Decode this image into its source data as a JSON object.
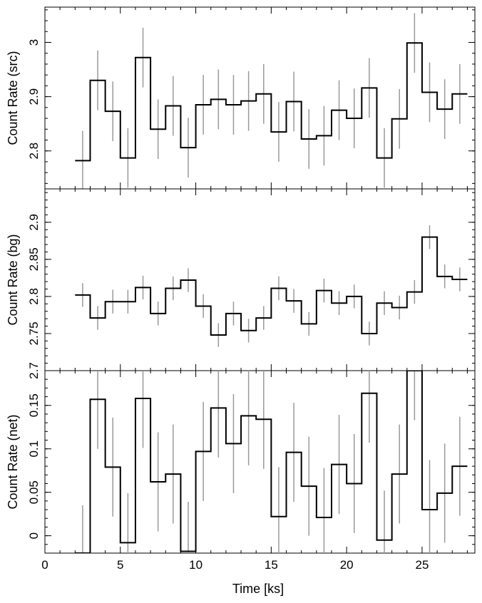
{
  "chart_data": {
    "type": "line",
    "style": "step-histogram-with-error-bars",
    "xlabel": "Time [ks]",
    "xlim": [
      0,
      28.5
    ],
    "xticks": [
      0,
      5,
      10,
      15,
      20,
      25
    ],
    "bin_width_ks": 1,
    "x": [
      2.5,
      3.5,
      4.5,
      5.5,
      6.5,
      7.5,
      8.5,
      9.5,
      10.5,
      11.5,
      12.5,
      13.5,
      14.5,
      15.5,
      16.5,
      17.5,
      18.5,
      19.5,
      20.5,
      21.5,
      22.5,
      23.5,
      24.5,
      25.5,
      26.5,
      27.5
    ],
    "panels": [
      {
        "ylabel": "Count Rate (src)",
        "ylim": [
          2.73,
          3.065
        ],
        "yticks": [
          2.8,
          2.9,
          3.0
        ],
        "ytick_labels": [
          "2.8",
          "2.9",
          "3"
        ],
        "values": [
          2.782,
          2.93,
          2.873,
          2.787,
          2.972,
          2.84,
          2.883,
          2.806,
          2.885,
          2.895,
          2.885,
          2.892,
          2.905,
          2.835,
          2.891,
          2.822,
          2.828,
          2.875,
          2.86,
          2.916,
          2.787,
          2.859,
          2.999,
          2.908,
          2.877,
          2.905
        ],
        "errors": [
          0.055,
          0.055,
          0.055,
          0.055,
          0.055,
          0.055,
          0.055,
          0.055,
          0.055,
          0.055,
          0.055,
          0.055,
          0.055,
          0.055,
          0.055,
          0.055,
          0.055,
          0.055,
          0.055,
          0.055,
          0.055,
          0.055,
          0.055,
          0.055,
          0.055,
          0.055
        ]
      },
      {
        "ylabel": "Count Rate (bg)",
        "ylim": [
          2.7,
          2.945
        ],
        "yticks": [
          2.7,
          2.75,
          2.8,
          2.85,
          2.9
        ],
        "ytick_labels": [
          "2.7",
          "2.75",
          "2.8",
          "2.85",
          "2.9"
        ],
        "values": [
          2.802,
          2.771,
          2.793,
          2.793,
          2.812,
          2.777,
          2.811,
          2.822,
          2.787,
          2.748,
          2.777,
          2.754,
          2.771,
          2.811,
          2.794,
          2.763,
          2.808,
          2.791,
          2.8,
          2.75,
          2.791,
          2.785,
          2.806,
          2.88,
          2.827,
          2.823
        ],
        "errors": [
          0.016,
          0.016,
          0.016,
          0.016,
          0.016,
          0.016,
          0.016,
          0.016,
          0.016,
          0.016,
          0.016,
          0.016,
          0.016,
          0.016,
          0.016,
          0.016,
          0.016,
          0.016,
          0.016,
          0.016,
          0.016,
          0.016,
          0.016,
          0.016,
          0.016,
          0.016
        ]
      },
      {
        "ylabel": "Count Rate (net)",
        "ylim": [
          -0.02,
          0.19
        ],
        "yticks": [
          0,
          0.05,
          0.1,
          0.15
        ],
        "ytick_labels": [
          "0",
          "0.05",
          "0.1",
          "0.15"
        ],
        "values": [
          -0.02,
          0.157,
          0.079,
          -0.008,
          0.158,
          0.062,
          0.071,
          -0.018,
          0.097,
          0.147,
          0.106,
          0.138,
          0.134,
          0.022,
          0.096,
          0.057,
          0.021,
          0.082,
          0.06,
          0.164,
          -0.005,
          0.071,
          0.19,
          0.03,
          0.049,
          0.08
        ],
        "errors": [
          0.055,
          0.057,
          0.057,
          0.057,
          0.057,
          0.057,
          0.057,
          0.057,
          0.057,
          0.057,
          0.057,
          0.057,
          0.057,
          0.057,
          0.057,
          0.057,
          0.057,
          0.057,
          0.057,
          0.057,
          0.057,
          0.057,
          0.057,
          0.057,
          0.057,
          0.057
        ]
      }
    ]
  }
}
